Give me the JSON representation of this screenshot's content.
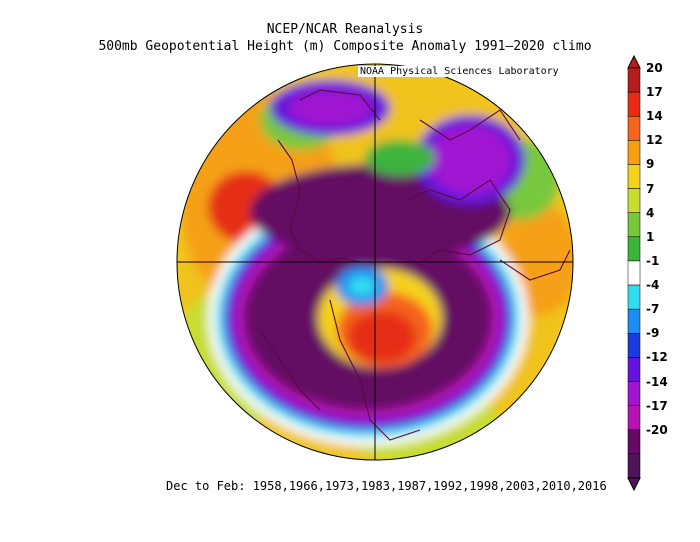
{
  "header": {
    "title": "NCEP/NCAR Reanalysis",
    "subtitle": "500mb Geopotential Height (m) Composite Anomaly 1991–2020 climo",
    "lab": "NOAA Physical Sciences Laboratory"
  },
  "footer": {
    "caption": "Dec to Feb: 1958,1966,1973,1983,1987,1992,1998,2003,2010,2016"
  },
  "colorbar": {
    "levels": [
      {
        "label": "20",
        "color": "#b41e1e"
      },
      {
        "label": "17",
        "color": "#e62d14"
      },
      {
        "label": "14",
        "color": "#f5641e"
      },
      {
        "label": "12",
        "color": "#f5a014"
      },
      {
        "label": "9",
        "color": "#f5d21e"
      },
      {
        "label": "7",
        "color": "#c8dc32"
      },
      {
        "label": "4",
        "color": "#78c83c"
      },
      {
        "label": "1",
        "color": "#3cb43c"
      },
      {
        "label": "-1",
        "color": "#ffffff"
      },
      {
        "label": "-4",
        "color": "#32dcf0"
      },
      {
        "label": "-7",
        "color": "#1e8cf0"
      },
      {
        "label": "-9",
        "color": "#1e3cdc"
      },
      {
        "label": "-12",
        "color": "#6414dc"
      },
      {
        "label": "-14",
        "color": "#a014d2"
      },
      {
        "label": "-17",
        "color": "#b414b4"
      },
      {
        "label": "-20",
        "color": "#640a64"
      },
      {
        "label": "",
        "color": "#50145a"
      }
    ],
    "top_cap_color": "#b41e1e",
    "bottom_cap_color": "#50145a"
  }
}
